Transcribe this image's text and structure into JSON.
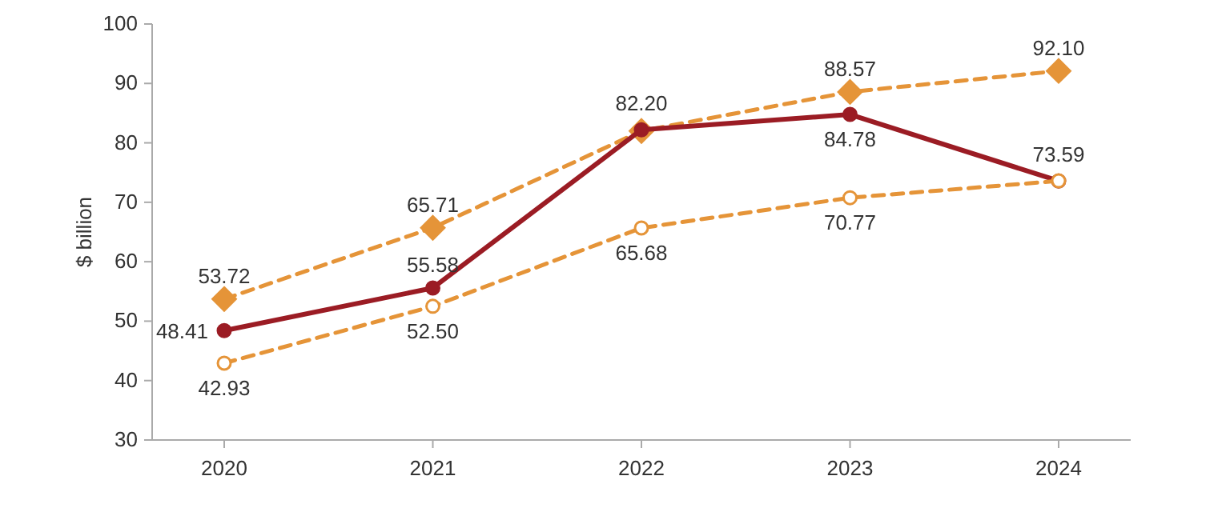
{
  "chart_data": {
    "type": "line",
    "ylabel": "$ billion",
    "categories": [
      "2020",
      "2021",
      "2022",
      "2023",
      "2024"
    ],
    "ylim": [
      30,
      100
    ],
    "yticks": [
      30,
      40,
      50,
      60,
      70,
      80,
      90,
      100
    ],
    "grid": false,
    "series": [
      {
        "color": "#e59438",
        "values": [
          53.72,
          65.71,
          82,
          88.57,
          92.1
        ],
        "value_labels": [
          "53.72",
          "65.71",
          null,
          "88.57",
          "92.10"
        ],
        "marker": "diamond",
        "line_style": "dashed"
      },
      {
        "color": "#9b1c24",
        "values": [
          48.41,
          55.58,
          82.2,
          84.78,
          73.59
        ],
        "value_labels": [
          "48.41",
          "55.58",
          "82.20",
          "84.78",
          "73.59"
        ],
        "marker": "circle",
        "line_style": "solid"
      },
      {
        "color": "#e59438",
        "values": [
          42.93,
          52.5,
          65.68,
          70.77,
          73.6
        ],
        "value_labels": [
          "42.93",
          "52.50",
          "65.68",
          "70.77",
          null
        ],
        "marker": "circle",
        "line_style": "dashed"
      }
    ]
  }
}
